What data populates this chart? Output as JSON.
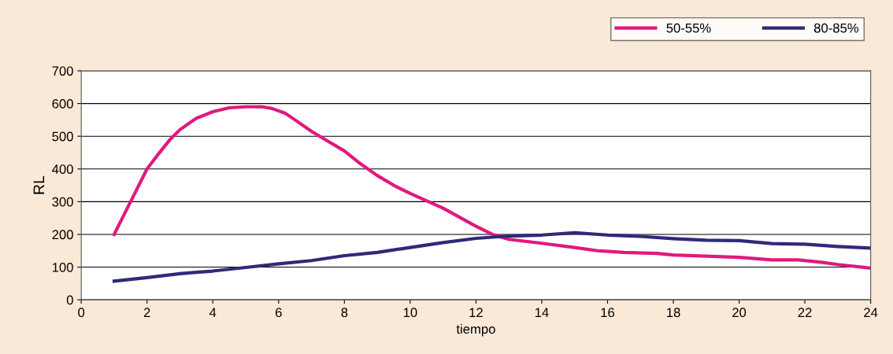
{
  "chart_data": {
    "type": "line",
    "xlabel": "tiempo",
    "ylabel": "RL",
    "xlim": [
      0,
      24
    ],
    "xticks": [
      0,
      2,
      4,
      6,
      8,
      10,
      12,
      14,
      16,
      18,
      20,
      22,
      24
    ],
    "ylim": [
      0,
      700
    ],
    "yticks": [
      0,
      100,
      200,
      300,
      400,
      500,
      600,
      700
    ],
    "grid": "y",
    "legend": "top right",
    "marker": "none",
    "line_style": "solid",
    "series": [
      {
        "name": "50-55%",
        "color": "#e0197d",
        "x": [
          1,
          1.5,
          2,
          2.3,
          2.7,
          3,
          3.5,
          4,
          4.5,
          5,
          5.5,
          5.8,
          6.2,
          6.5,
          7,
          7.5,
          8,
          8.5,
          9,
          9.5,
          10,
          11,
          12,
          12.5,
          13,
          14,
          15,
          15.7,
          16.5,
          17.5,
          18,
          20,
          21,
          21.8,
          22.5,
          23,
          24
        ],
        "values": [
          200,
          300,
          400,
          440,
          490,
          520,
          555,
          575,
          587,
          590,
          590,
          585,
          570,
          550,
          515,
          485,
          455,
          415,
          380,
          350,
          325,
          280,
          225,
          200,
          185,
          173,
          160,
          150,
          145,
          142,
          137,
          130,
          122,
          122,
          115,
          108,
          97
        ]
      },
      {
        "name": "80-85%",
        "color": "#2e2a7a",
        "x": [
          1,
          2,
          3,
          4,
          5,
          6,
          7,
          8,
          9,
          10,
          11,
          12,
          13,
          14,
          15,
          16,
          17,
          18,
          19,
          20,
          21,
          22,
          23,
          24
        ],
        "values": [
          57,
          68,
          80,
          88,
          99,
          110,
          120,
          135,
          145,
          160,
          175,
          188,
          195,
          198,
          205,
          198,
          194,
          187,
          182,
          181,
          172,
          170,
          163,
          158
        ]
      }
    ]
  }
}
